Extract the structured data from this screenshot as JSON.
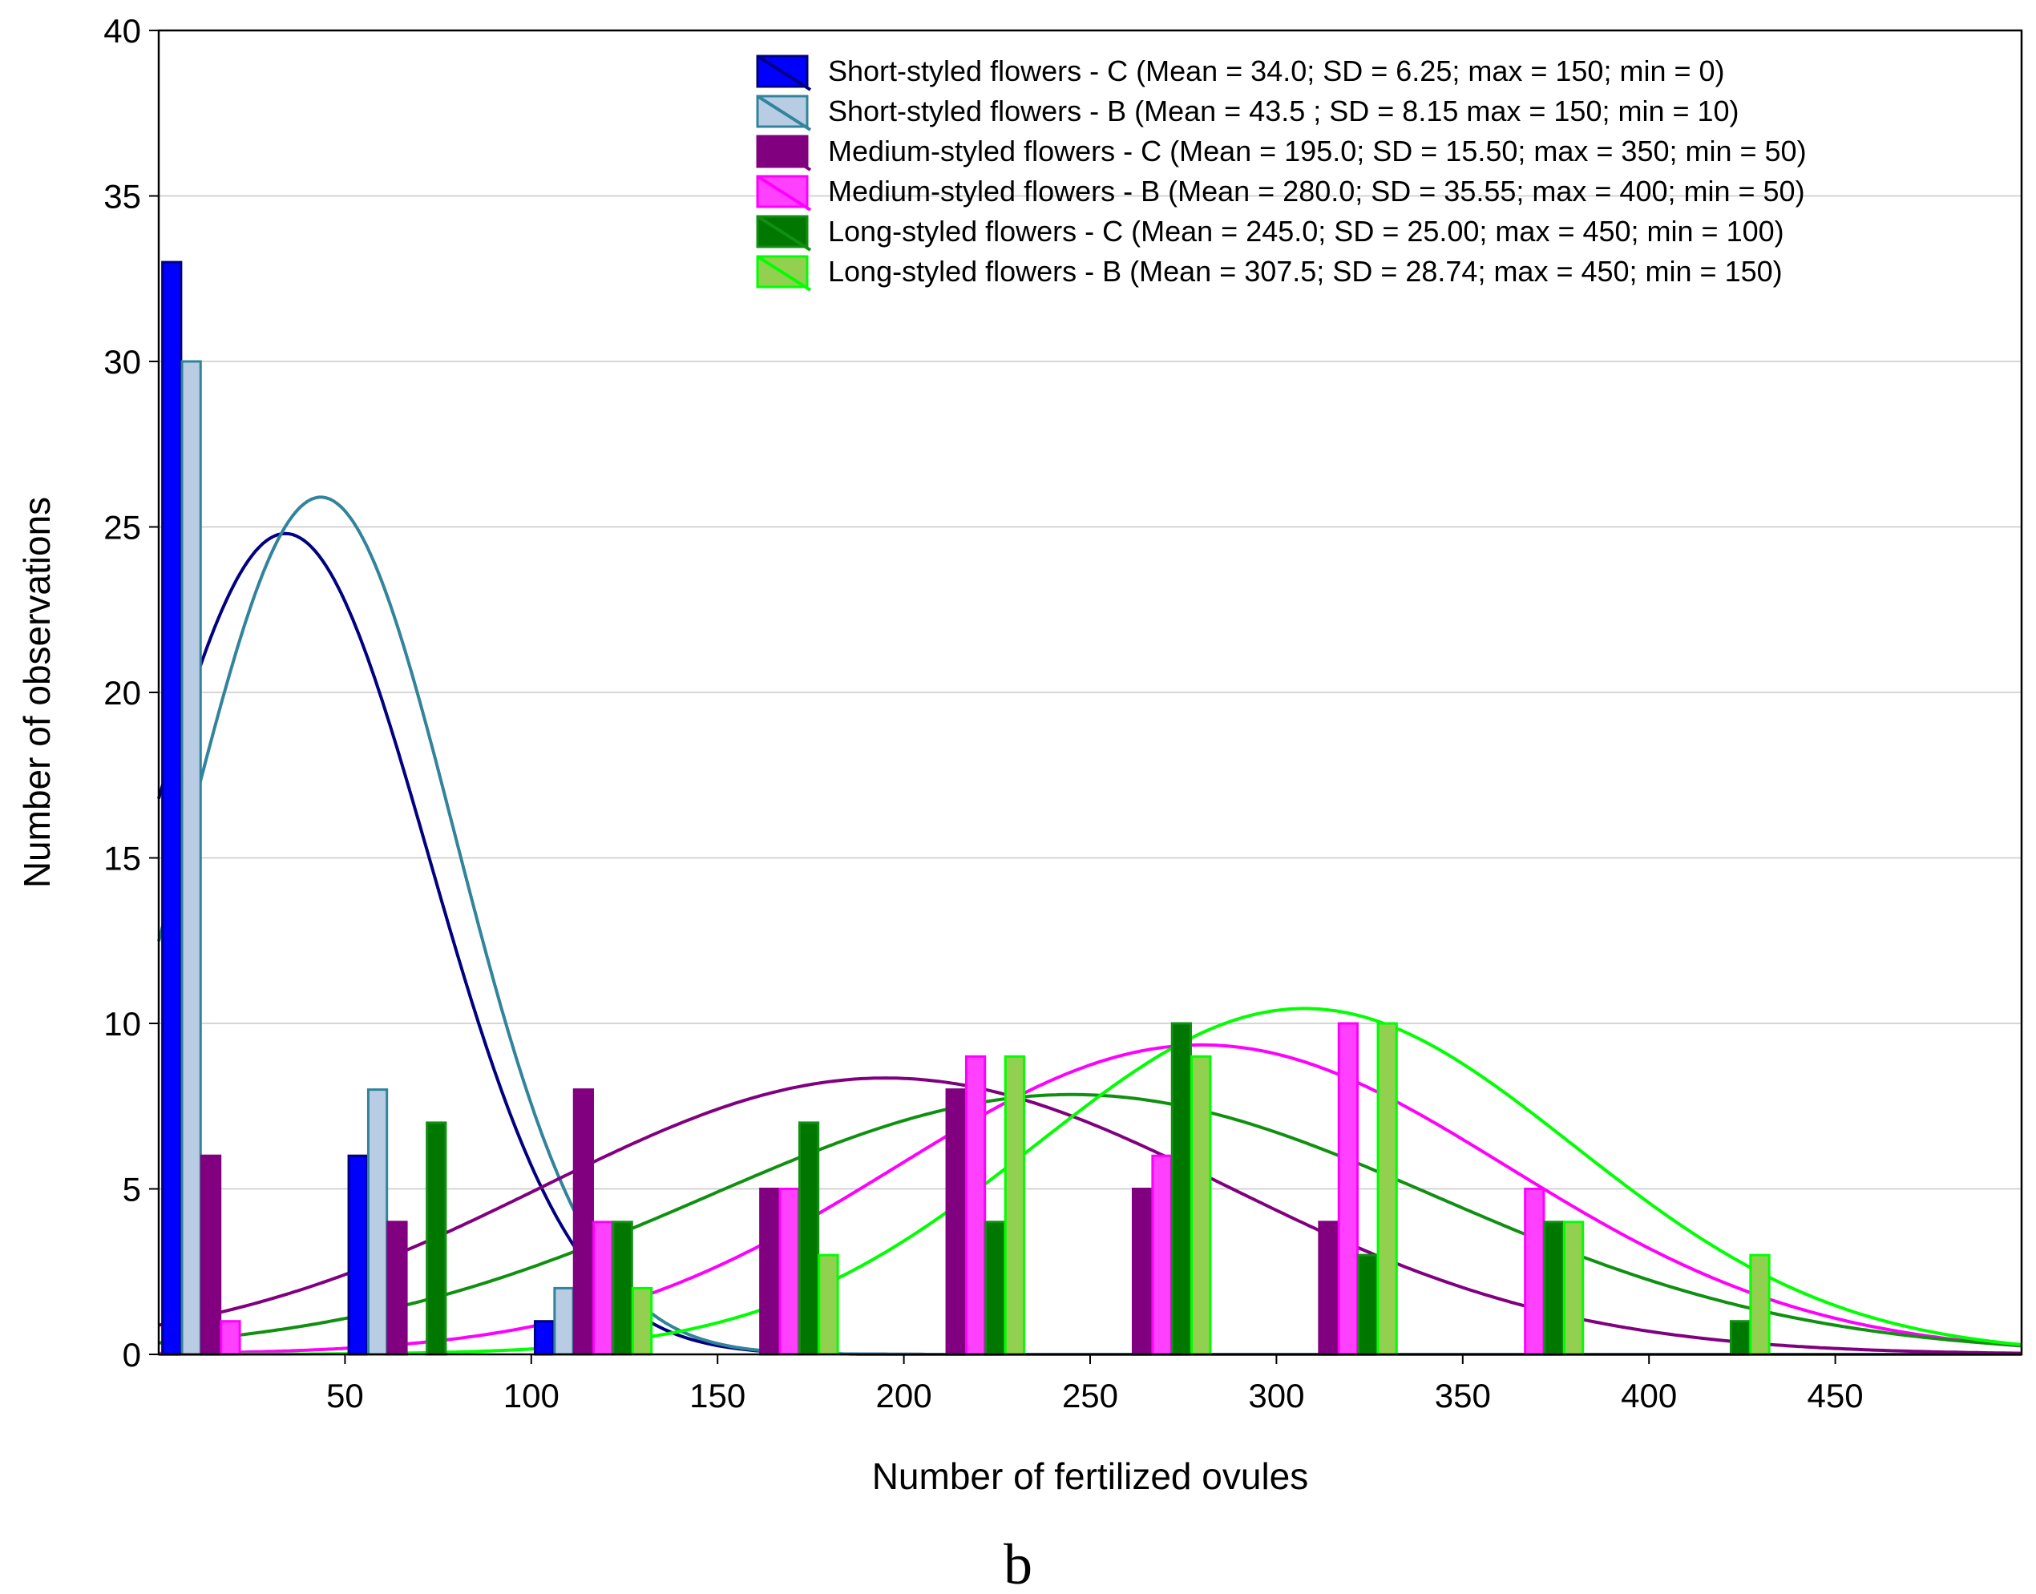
{
  "chart_data": {
    "type": "bar",
    "xlabel": "Number of fertilized ovules",
    "ylabel": "Number of observations",
    "panel_label": "b",
    "xlim": [
      0,
      500
    ],
    "ylim": [
      0,
      40
    ],
    "xticks": [
      50,
      100,
      150,
      200,
      250,
      300,
      350,
      400,
      450
    ],
    "yticks": [
      0,
      5,
      10,
      15,
      20,
      25,
      30,
      35,
      40
    ],
    "grid": true,
    "legend_position": "top-right",
    "bin_starts": [
      0,
      50,
      100,
      150,
      200,
      250,
      300,
      350,
      400
    ],
    "series": [
      {
        "name": "Short-styled flowers - C (Mean = 34.0; SD = 6.25; max = 150; min = 0)",
        "fill": "#0000ff",
        "line": "#000080",
        "values": [
          33,
          6,
          1,
          0,
          0,
          0,
          0,
          0,
          0
        ],
        "curve": {
          "mean": 34.0,
          "sd": 38.5,
          "peak": 24.8
        }
      },
      {
        "name": "Short-styled flowers - B (Mean = 43.5 ; SD = 8.15 max = 150; min = 10)",
        "fill": "#b8cce4",
        "line": "#31849b",
        "values": [
          30,
          8,
          2,
          0,
          0,
          0,
          0,
          0,
          0
        ],
        "curve": {
          "mean": 43.5,
          "sd": 36.0,
          "peak": 25.9
        }
      },
      {
        "name": "Medium-styled flowers - C (Mean = 195.0; SD = 15.50; max = 350; min = 50)",
        "fill": "#800080",
        "line": "#800080",
        "values": [
          6,
          4,
          8,
          5,
          8,
          5,
          4,
          0,
          0
        ],
        "curve": {
          "mean": 195.0,
          "sd": 92.0,
          "peak": 8.35
        }
      },
      {
        "name": "Medium-styled flowers - B (Mean = 280.0; SD = 35.55; max = 400; min = 50)",
        "fill": "#ff40ff",
        "line": "#ff00ff",
        "values": [
          1,
          0,
          4,
          5,
          9,
          6,
          10,
          5,
          0
        ],
        "curve": {
          "mean": 280.0,
          "sd": 82.0,
          "peak": 9.35
        }
      },
      {
        "name": "Long-styled flowers - C (Mean = 245.0; SD = 25.00; max = 450; min = 100)",
        "fill": "#007800",
        "line": "#109010",
        "values": [
          0,
          7,
          4,
          7,
          4,
          10,
          3,
          4,
          1
        ],
        "curve": {
          "mean": 245.0,
          "sd": 98.0,
          "peak": 7.85
        }
      },
      {
        "name": "Long-styled flowers - B (Mean = 307.5; SD = 28.74; max = 450; min = 150)",
        "fill": "#92d050",
        "line": "#00ff00",
        "values": [
          0,
          0,
          2,
          3,
          9,
          9,
          10,
          4,
          3
        ],
        "curve": {
          "mean": 307.5,
          "sd": 72.0,
          "peak": 10.45
        }
      }
    ]
  }
}
